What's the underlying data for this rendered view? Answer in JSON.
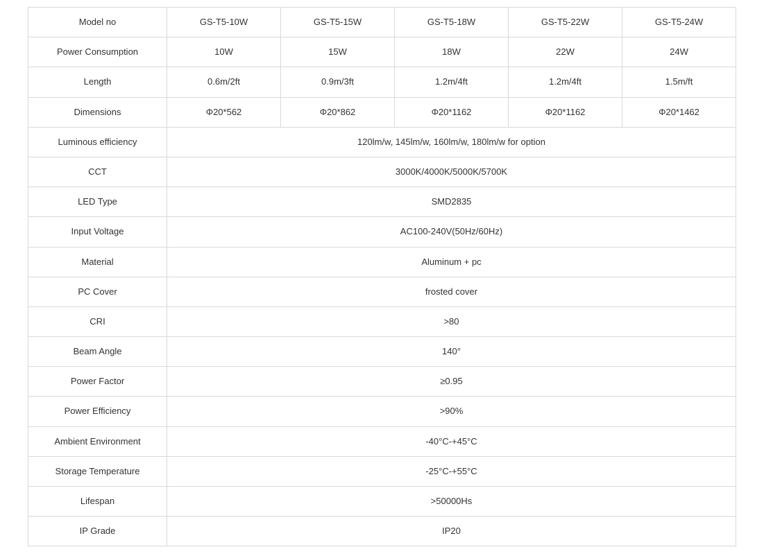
{
  "table": {
    "border_color": "#d9d9d9",
    "text_color": "#333333",
    "font_size": 13,
    "background_color": "#ffffff",
    "label_column_width": 200,
    "rows": [
      {
        "label": "Model no",
        "type": "multi",
        "cells": [
          "GS-T5-10W",
          "GS-T5-15W",
          "GS-T5-18W",
          "GS-T5-22W",
          "GS-T5-24W"
        ]
      },
      {
        "label": "Power Consumption",
        "type": "multi",
        "cells": [
          "10W",
          "15W",
          "18W",
          "22W",
          "24W"
        ]
      },
      {
        "label": "Length",
        "type": "multi",
        "cells": [
          "0.6m/2ft",
          "0.9m/3ft",
          "1.2m/4ft",
          "1.2m/4ft",
          "1.5m/ft"
        ]
      },
      {
        "label": "Dimensions",
        "type": "multi",
        "cells": [
          "Φ20*562",
          "Φ20*862",
          "Φ20*1162",
          "Φ20*1162",
          "Φ20*1462"
        ]
      },
      {
        "label": "Luminous efficiency",
        "type": "span",
        "value": "120lm/w, 145lm/w, 160lm/w, 180lm/w for option"
      },
      {
        "label": "CCT",
        "type": "span",
        "value": "3000K/4000K/5000K/5700K"
      },
      {
        "label": "LED Type",
        "type": "span",
        "value": "SMD2835"
      },
      {
        "label": "Input Voltage",
        "type": "span",
        "value": "AC100-240V(50Hz/60Hz)"
      },
      {
        "label": "Material",
        "type": "span",
        "value": "Aluminum + pc"
      },
      {
        "label": "PC Cover",
        "type": "span",
        "value": "frosted cover"
      },
      {
        "label": "CRI",
        "type": "span",
        "value": ">80"
      },
      {
        "label": "Beam Angle",
        "type": "span",
        "value": "140°"
      },
      {
        "label": "Power Factor",
        "type": "span",
        "value": "≥0.95"
      },
      {
        "label": "Power Efficiency",
        "type": "span",
        "value": ">90%"
      },
      {
        "label": "Ambient Environment",
        "type": "span",
        "value": "-40°C-+45°C"
      },
      {
        "label": "Storage Temperature",
        "type": "span",
        "value": "-25°C-+55°C"
      },
      {
        "label": "Lifespan",
        "type": "span",
        "value": ">50000Hs"
      },
      {
        "label": "IP Grade",
        "type": "span",
        "value": "IP20"
      }
    ]
  }
}
